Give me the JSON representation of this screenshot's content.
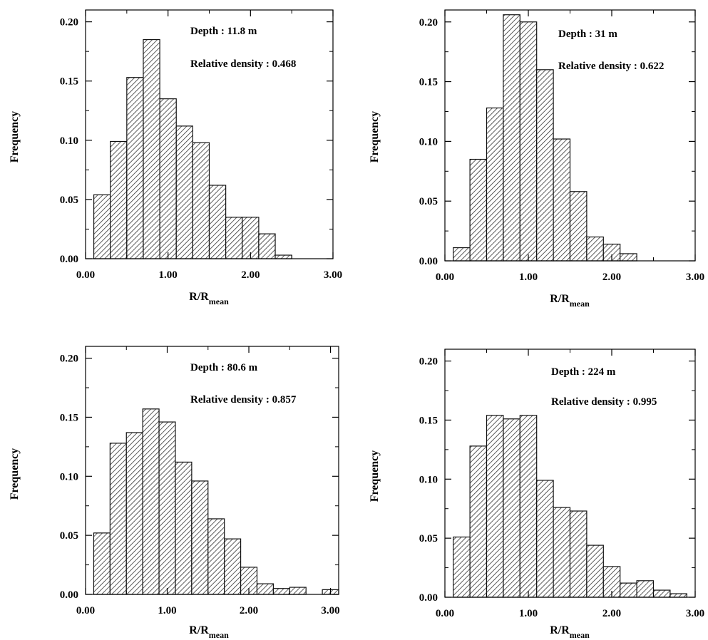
{
  "chart_data": [
    {
      "type": "bar",
      "panel": "top-left",
      "bin_edges": [
        0.1,
        0.3,
        0.5,
        0.7,
        0.9,
        1.1,
        1.3,
        1.5,
        1.7,
        1.9,
        2.1,
        2.3,
        2.5
      ],
      "values": [
        0.054,
        0.099,
        0.153,
        0.185,
        0.135,
        0.112,
        0.098,
        0.062,
        0.035,
        0.035,
        0.021,
        0.003
      ],
      "xlim": [
        0,
        3.0
      ],
      "ylim": [
        0,
        0.21
      ],
      "xticks": [
        "0.00",
        "1.00",
        "2.00",
        "3.00"
      ],
      "yticks": [
        "0.00",
        "0.05",
        "0.10",
        "0.15",
        "0.20"
      ],
      "xlabel": "R/R",
      "xlabel_sub": "mean",
      "ylabel": "Frequency",
      "annotations": [
        "Depth : 11.8 m",
        "Relative density : 0.468"
      ]
    },
    {
      "type": "bar",
      "panel": "top-right",
      "bin_edges": [
        0.1,
        0.3,
        0.5,
        0.7,
        0.9,
        1.1,
        1.3,
        1.5,
        1.7,
        1.9,
        2.1,
        2.3
      ],
      "values": [
        0.011,
        0.085,
        0.128,
        0.206,
        0.2,
        0.16,
        0.102,
        0.058,
        0.02,
        0.014,
        0.006
      ],
      "xlim": [
        0,
        3.0
      ],
      "ylim": [
        0,
        0.21
      ],
      "xticks": [
        "0.00",
        "1.00",
        "2.00",
        "3.00"
      ],
      "yticks": [
        "0.00",
        "0.05",
        "0.10",
        "0.15",
        "0.20"
      ],
      "xlabel": "R/R",
      "xlabel_sub": "mean",
      "ylabel": "Frequency",
      "annotations": [
        "Depth : 31 m",
        "Relative density : 0.622"
      ]
    },
    {
      "type": "bar",
      "panel": "bottom-left",
      "bin_edges": [
        0.1,
        0.3,
        0.5,
        0.7,
        0.9,
        1.1,
        1.3,
        1.5,
        1.7,
        1.9,
        2.1,
        2.3,
        2.5,
        2.7,
        2.9,
        3.1
      ],
      "values": [
        0.052,
        0.128,
        0.137,
        0.157,
        0.146,
        0.112,
        0.096,
        0.064,
        0.047,
        0.023,
        0.009,
        0.005,
        0.006,
        0.0,
        0.004
      ],
      "xlim": [
        0,
        3.1
      ],
      "ylim": [
        0,
        0.21
      ],
      "xticks": [
        "0.00",
        "1.00",
        "2.00",
        "3.00"
      ],
      "yticks": [
        "0.00",
        "0.05",
        "0.10",
        "0.15",
        "0.20"
      ],
      "xlabel": "R/R",
      "xlabel_sub": "mean",
      "ylabel": "Frequency",
      "annotations": [
        "Depth : 80.6 m",
        "Relative density : 0.857"
      ]
    },
    {
      "type": "bar",
      "panel": "bottom-right",
      "bin_edges": [
        0.1,
        0.3,
        0.5,
        0.7,
        0.9,
        1.1,
        1.3,
        1.5,
        1.7,
        1.9,
        2.1,
        2.3,
        2.5,
        2.7,
        2.9
      ],
      "values": [
        0.051,
        0.128,
        0.154,
        0.151,
        0.154,
        0.099,
        0.076,
        0.073,
        0.044,
        0.026,
        0.012,
        0.014,
        0.006,
        0.003
      ],
      "xlim": [
        0,
        3.0
      ],
      "ylim": [
        0,
        0.21
      ],
      "xticks": [
        "0.00",
        "1.00",
        "2.00",
        "3.00"
      ],
      "yticks": [
        "0.00",
        "0.05",
        "0.10",
        "0.15",
        "0.20"
      ],
      "xlabel": "R/R",
      "xlabel_sub": "mean",
      "ylabel": "Frequency",
      "annotations": [
        "Depth : 224 m",
        "Relative density : 0.995"
      ]
    }
  ],
  "colors": {
    "bar_edge": "#111111",
    "hatch": "#333333",
    "axis": "#000000",
    "background": "#ffffff"
  }
}
